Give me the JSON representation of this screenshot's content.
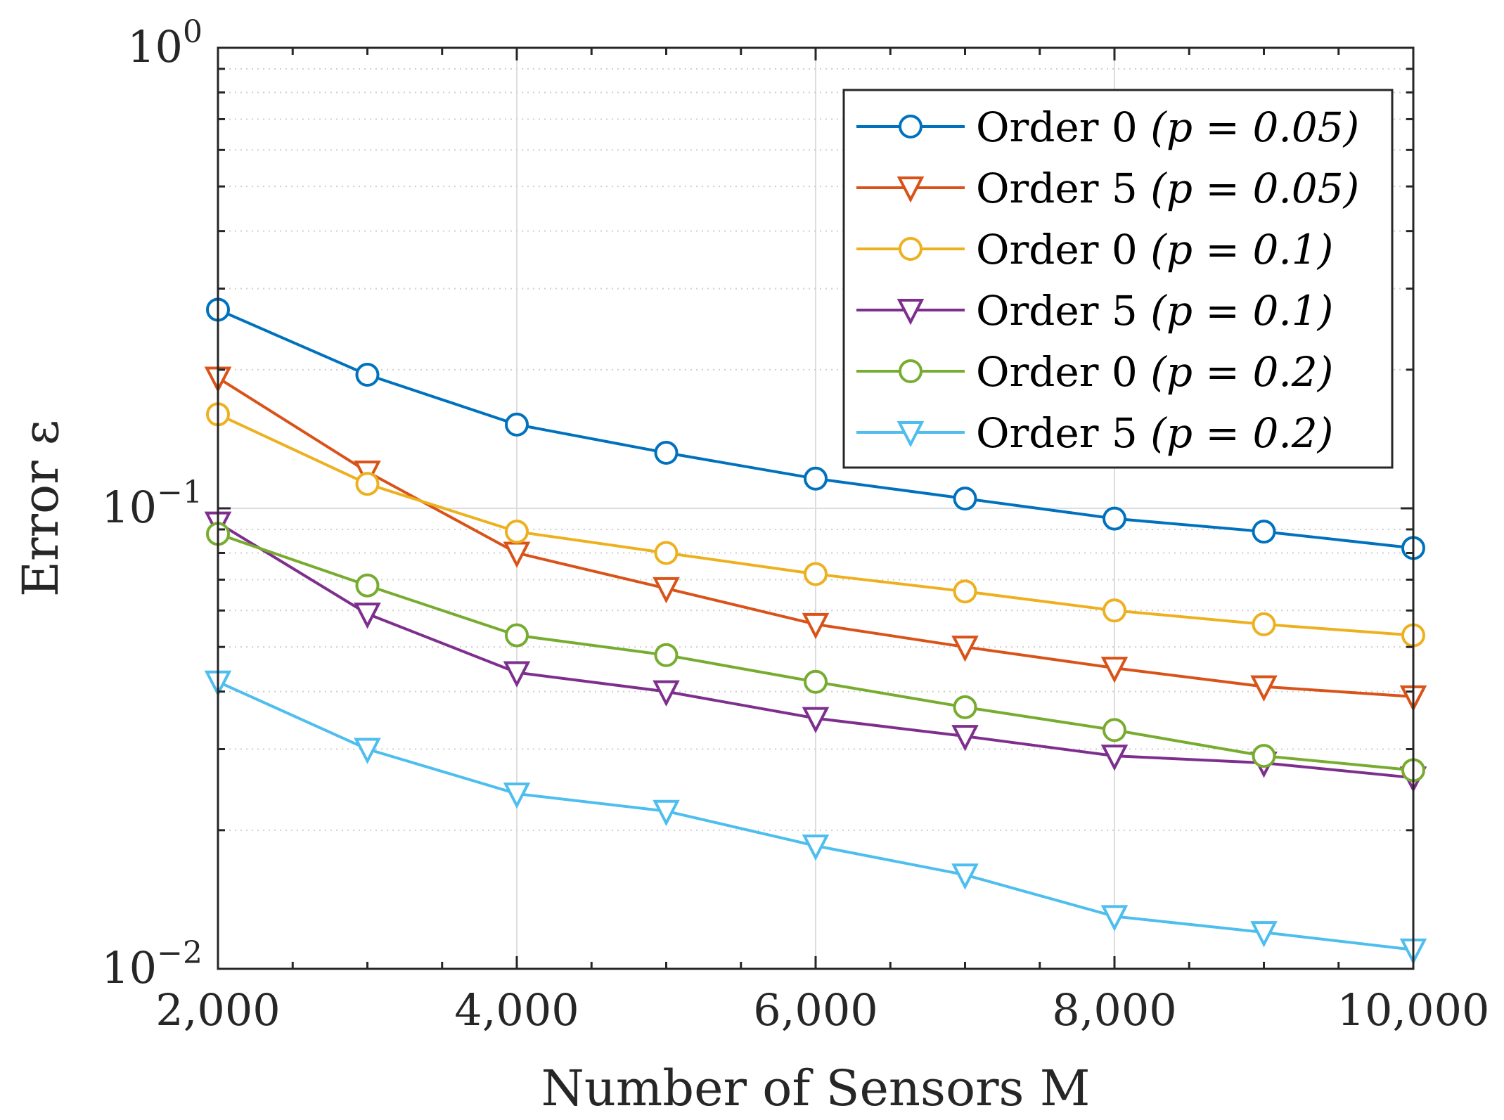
{
  "chart_data": {
    "type": "line",
    "xlabel": "Number of Sensors M",
    "ylabel": "Error ε",
    "xscale": "linear",
    "yscale": "log",
    "xlim": [
      2000,
      10000
    ],
    "ylim": [
      0.01,
      1
    ],
    "xticks": [
      2000,
      4000,
      6000,
      8000,
      10000
    ],
    "xtick_labels": [
      "2,000",
      "4,000",
      "6,000",
      "8,000",
      "10,000"
    ],
    "yticks": [
      0.01,
      0.1,
      1
    ],
    "ytick_labels": [
      {
        "base": "10",
        "exp": "−2"
      },
      {
        "base": "10",
        "exp": "−1"
      },
      {
        "base": "10",
        "exp": "0"
      }
    ],
    "grid": true,
    "legend_position": "top-right",
    "x": [
      2000,
      3000,
      4000,
      5000,
      6000,
      7000,
      8000,
      9000,
      10000
    ],
    "series": [
      {
        "name": "Order 0 (p = 0.05)",
        "color": "#0072BD",
        "marker": "circle",
        "values": [
          0.27,
          0.195,
          0.152,
          0.132,
          0.116,
          0.105,
          0.095,
          0.089,
          0.082
        ]
      },
      {
        "name": "Order 5 (p = 0.05)",
        "color": "#D95319",
        "marker": "triangle-down",
        "values": [
          0.192,
          0.12,
          0.08,
          0.067,
          0.056,
          0.05,
          0.045,
          0.041,
          0.039
        ]
      },
      {
        "name": "Order 0 (p = 0.1)",
        "color": "#EDB120",
        "marker": "circle",
        "values": [
          0.16,
          0.113,
          0.089,
          0.08,
          0.072,
          0.066,
          0.06,
          0.056,
          0.053
        ]
      },
      {
        "name": "Order 5 (p = 0.1)",
        "color": "#7E2F8E",
        "marker": "triangle-down",
        "values": [
          0.093,
          0.059,
          0.044,
          0.04,
          0.035,
          0.032,
          0.029,
          0.028,
          0.026
        ]
      },
      {
        "name": "Order 0 (p = 0.2)",
        "color": "#77AC30",
        "marker": "circle",
        "values": [
          0.088,
          0.068,
          0.053,
          0.048,
          0.042,
          0.037,
          0.033,
          0.029,
          0.027
        ]
      },
      {
        "name": "Order 5 (p = 0.2)",
        "color": "#4DBEEE",
        "marker": "triangle-down",
        "values": [
          0.042,
          0.03,
          0.024,
          0.022,
          0.0185,
          0.016,
          0.013,
          0.012,
          0.011
        ]
      }
    ],
    "legend": [
      {
        "order": "Order 0",
        "param": "(p = 0.05)"
      },
      {
        "order": "Order 5",
        "param": "(p = 0.05)"
      },
      {
        "order": "Order 0",
        "param": "(p = 0.1)"
      },
      {
        "order": "Order 5",
        "param": "(p = 0.1)"
      },
      {
        "order": "Order 0",
        "param": "(p = 0.2)"
      },
      {
        "order": "Order 5",
        "param": "(p = 0.2)"
      }
    ]
  }
}
